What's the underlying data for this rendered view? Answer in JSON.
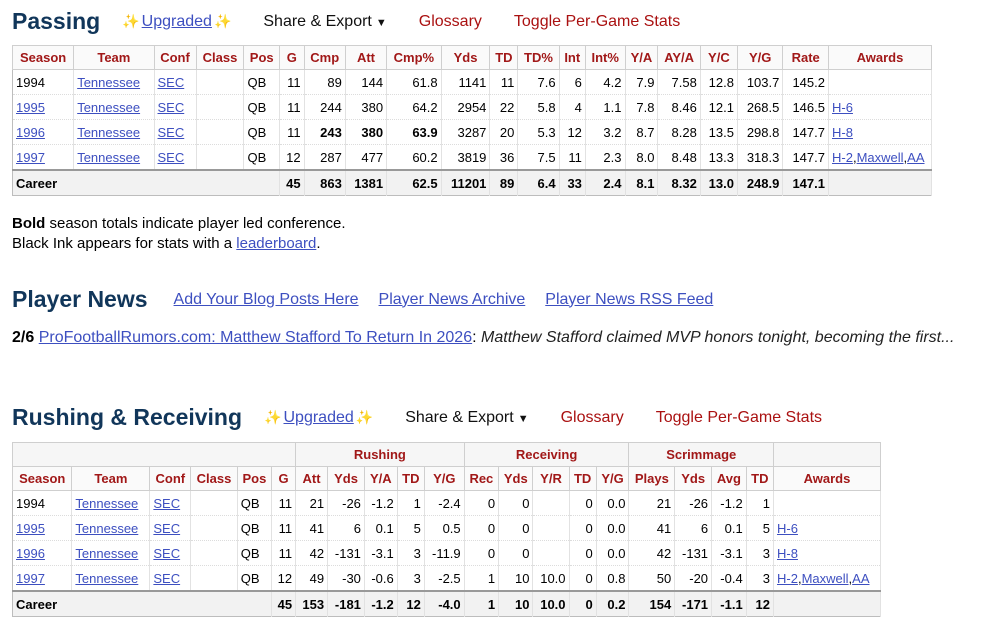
{
  "passing": {
    "title": "Passing",
    "upgraded": "Upgraded",
    "share": "Share & Export",
    "glossary": "Glossary",
    "toggle": "Toggle Per-Game Stats",
    "headers": [
      "Season",
      "Team",
      "Conf",
      "Class",
      "Pos",
      "G",
      "Cmp",
      "Att",
      "Cmp%",
      "Yds",
      "TD",
      "TD%",
      "Int",
      "Int%",
      "Y/A",
      "AY/A",
      "Y/C",
      "Y/G",
      "Rate",
      "Awards"
    ],
    "rows": [
      {
        "season": "1994",
        "team": "Tennessee",
        "conf": "SEC",
        "cls": "",
        "pos": "QB",
        "g": "11",
        "cmp": "89",
        "att": "144",
        "cmp_pct": "61.8",
        "yds": "1141",
        "td": "11",
        "td_pct": "7.6",
        "int": "6",
        "int_pct": "4.2",
        "ya": "7.9",
        "aya": "7.58",
        "yc": "12.8",
        "yg": "103.7",
        "rate": "145.2",
        "awards": []
      },
      {
        "season": "1995",
        "team": "Tennessee",
        "conf": "SEC",
        "cls": "",
        "pos": "QB",
        "g": "11",
        "cmp": "244",
        "att": "380",
        "cmp_pct": "64.2",
        "yds": "2954",
        "td": "22",
        "td_pct": "5.8",
        "int": "4",
        "int_pct": "1.1",
        "ya": "7.8",
        "aya": "8.46",
        "yc": "12.1",
        "yg": "268.5",
        "rate": "146.5",
        "awards": [
          "H-6"
        ]
      },
      {
        "season": "1996",
        "team": "Tennessee",
        "conf": "SEC",
        "cls": "",
        "pos": "QB",
        "g": "11",
        "cmp": "243",
        "att": "380",
        "cmp_pct": "63.9",
        "yds": "3287",
        "td": "20",
        "td_pct": "5.3",
        "int": "12",
        "int_pct": "3.2",
        "ya": "8.7",
        "aya": "8.28",
        "yc": "13.5",
        "yg": "298.8",
        "rate": "147.7",
        "awards": [
          "H-8"
        ]
      },
      {
        "season": "1997",
        "team": "Tennessee",
        "conf": "SEC",
        "cls": "",
        "pos": "QB",
        "g": "12",
        "cmp": "287",
        "att": "477",
        "cmp_pct": "60.2",
        "yds": "3819",
        "td": "36",
        "td_pct": "7.5",
        "int": "11",
        "int_pct": "2.3",
        "ya": "8.0",
        "aya": "8.48",
        "yc": "13.3",
        "yg": "318.3",
        "rate": "147.7",
        "awards": [
          "H-2",
          "Maxwell",
          "AA"
        ]
      }
    ],
    "career": {
      "label": "Career",
      "g": "45",
      "cmp": "863",
      "att": "1381",
      "cmp_pct": "62.5",
      "yds": "11201",
      "td": "89",
      "td_pct": "6.4",
      "int": "33",
      "int_pct": "2.4",
      "ya": "8.1",
      "aya": "8.32",
      "yc": "13.0",
      "yg": "248.9",
      "rate": "147.1"
    }
  },
  "notes": {
    "bold_word": "Bold",
    "line1_rest": " season totals indicate player led conference.",
    "line2_prefix": "Black Ink appears for stats with a ",
    "line2_link": "leaderboard",
    "line2_suffix": "."
  },
  "news": {
    "title": "Player News",
    "links": [
      "Add Your Blog Posts Here",
      "Player News Archive",
      "Player News RSS Feed"
    ],
    "item_date": "2/6",
    "item_link": "ProFootballRumors.com: Matthew Stafford To Return In 2026",
    "item_sep": ":",
    "item_snippet": "Matthew Stafford claimed MVP honors tonight, becoming the first..."
  },
  "rushing": {
    "title": "Rushing & Receiving",
    "upgraded": "Upgraded",
    "share": "Share & Export",
    "glossary": "Glossary",
    "toggle": "Toggle Per-Game Stats",
    "groups": [
      "Rushing",
      "Receiving",
      "Scrimmage"
    ],
    "headers": [
      "Season",
      "Team",
      "Conf",
      "Class",
      "Pos",
      "G",
      "Att",
      "Yds",
      "Y/A",
      "TD",
      "Y/G",
      "Rec",
      "Yds",
      "Y/R",
      "TD",
      "Y/G",
      "Plays",
      "Yds",
      "Avg",
      "TD",
      "Awards"
    ],
    "rows": [
      {
        "season": "1994",
        "team": "Tennessee",
        "conf": "SEC",
        "cls": "",
        "pos": "QB",
        "g": "11",
        "ratt": "21",
        "ryds": "-26",
        "rya": "-1.2",
        "rtd": "1",
        "ryg": "-2.4",
        "rec": "0",
        "recyds": "0",
        "yr": "",
        "rectd": "0",
        "recyg": "0.0",
        "plays": "21",
        "syds": "-26",
        "savg": "-1.2",
        "std": "1",
        "awards": []
      },
      {
        "season": "1995",
        "team": "Tennessee",
        "conf": "SEC",
        "cls": "",
        "pos": "QB",
        "g": "11",
        "ratt": "41",
        "ryds": "6",
        "rya": "0.1",
        "rtd": "5",
        "ryg": "0.5",
        "rec": "0",
        "recyds": "0",
        "yr": "",
        "rectd": "0",
        "recyg": "0.0",
        "plays": "41",
        "syds": "6",
        "savg": "0.1",
        "std": "5",
        "awards": [
          "H-6"
        ]
      },
      {
        "season": "1996",
        "team": "Tennessee",
        "conf": "SEC",
        "cls": "",
        "pos": "QB",
        "g": "11",
        "ratt": "42",
        "ryds": "-131",
        "rya": "-3.1",
        "rtd": "3",
        "ryg": "-11.9",
        "rec": "0",
        "recyds": "0",
        "yr": "",
        "rectd": "0",
        "recyg": "0.0",
        "plays": "42",
        "syds": "-131",
        "savg": "-3.1",
        "std": "3",
        "awards": [
          "H-8"
        ]
      },
      {
        "season": "1997",
        "team": "Tennessee",
        "conf": "SEC",
        "cls": "",
        "pos": "QB",
        "g": "12",
        "ratt": "49",
        "ryds": "-30",
        "rya": "-0.6",
        "rtd": "3",
        "ryg": "-2.5",
        "rec": "1",
        "recyds": "10",
        "yr": "10.0",
        "rectd": "0",
        "recyg": "0.8",
        "plays": "50",
        "syds": "-20",
        "savg": "-0.4",
        "std": "3",
        "awards": [
          "H-2",
          "Maxwell",
          "AA"
        ]
      }
    ],
    "career": {
      "label": "Career",
      "g": "45",
      "ratt": "153",
      "ryds": "-181",
      "rya": "-1.2",
      "rtd": "12",
      "ryg": "-4.0",
      "rec": "1",
      "recyds": "10",
      "yr": "10.0",
      "rectd": "0",
      "recyg": "0.2",
      "plays": "154",
      "syds": "-171",
      "savg": "-1.1",
      "std": "12"
    }
  },
  "colors": {
    "title": "#11365a",
    "header_text": "#a11818",
    "link": "#3d4fc0",
    "action_link": "#aa1111"
  },
  "icons": {
    "upgraded": "sparkle-icon",
    "share": "caret-down-icon"
  }
}
